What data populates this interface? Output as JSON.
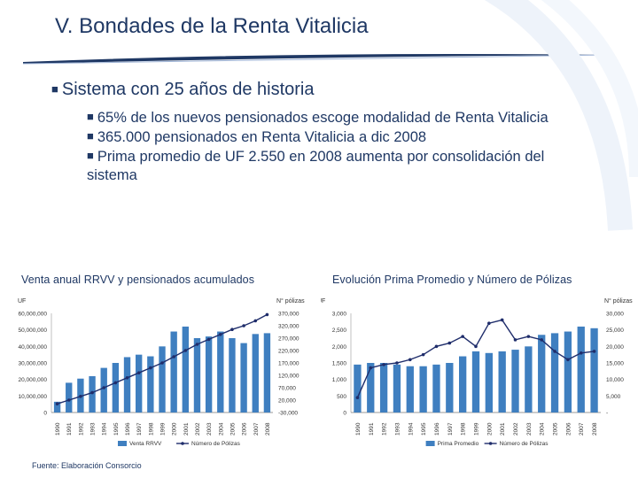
{
  "slide": {
    "title": "V. Bondades de la Renta Vitalicia",
    "bullet_main": "Sistema con 25 años de historia",
    "bullets": [
      "65% de los nuevos pensionados escoge modalidad de Renta Vitalicia",
      "365.000 pensionados en Renta Vitalicia a dic 2008",
      "Prima promedio de UF 2.550 en 2008 aumenta por consolidación del sistema"
    ],
    "source": "Fuente: Elaboración Consorcio"
  },
  "chart_data": [
    {
      "type": "bar",
      "title": "Venta anual RRVV y pensionados acumulados",
      "categories": [
        "1990",
        "1991",
        "1992",
        "1993",
        "1994",
        "1995",
        "1996",
        "1997",
        "1998",
        "1999",
        "2000",
        "2001",
        "2002",
        "2003",
        "2004",
        "2005",
        "2006",
        "2007",
        "2008"
      ],
      "left_axis": {
        "label": "UF",
        "ticks": [
          "60,000,000",
          "50,000,000",
          "40,000,000",
          "30,000,000",
          "20,000,000",
          "10,000,000",
          "0"
        ],
        "ylim": [
          0,
          60000000
        ]
      },
      "right_axis": {
        "label": "N° pólizas",
        "ticks": [
          "370,000",
          "320,000",
          "270,000",
          "220,000",
          "170,000",
          "120,000",
          "70,000",
          "20,000",
          "-30,000"
        ],
        "ylim": [
          -30000,
          370000
        ]
      },
      "series": [
        {
          "name": "Venta RRVV",
          "kind": "bar",
          "axis": "left",
          "color": "#3f7fc0",
          "values": [
            6500000,
            18000000,
            20500000,
            22000000,
            27000000,
            30000000,
            33500000,
            35000000,
            34000000,
            40000000,
            49000000,
            52000000,
            45000000,
            46000000,
            49000000,
            45000000,
            42000000,
            47500000,
            48000000
          ]
        },
        {
          "name": "Número de Pólizas",
          "kind": "line",
          "axis": "right",
          "color": "#1f2d6b",
          "values": [
            5000,
            20000,
            35000,
            50000,
            70000,
            90000,
            110000,
            130000,
            150000,
            170000,
            195000,
            220000,
            245000,
            265000,
            285000,
            305000,
            320000,
            340000,
            365000
          ]
        }
      ],
      "legend": "bottom"
    },
    {
      "type": "bar",
      "title": "Evolución Prima Promedio y Número de Pólizas",
      "categories": [
        "1990",
        "1991",
        "1992",
        "1993",
        "1994",
        "1995",
        "1996",
        "1997",
        "1998",
        "1999",
        "2000",
        "2001",
        "2002",
        "2003",
        "2004",
        "2005",
        "2006",
        "2007",
        "2008"
      ],
      "left_axis": {
        "label": "UF",
        "ticks": [
          "3,000",
          "2,500",
          "2,000",
          "1,500",
          "1,000",
          "500",
          "0"
        ],
        "ylim": [
          0,
          3000
        ]
      },
      "right_axis": {
        "label": "N° pólizas",
        "ticks": [
          "30,000",
          "25,000",
          "20,000",
          "15,000",
          "10,000",
          "5,000",
          "-"
        ],
        "ylim": [
          0,
          30000
        ]
      },
      "series": [
        {
          "name": "Prima Promedio",
          "kind": "bar",
          "axis": "left",
          "color": "#3f7fc0",
          "values": [
            1450,
            1500,
            1500,
            1450,
            1400,
            1400,
            1450,
            1500,
            1700,
            1850,
            1800,
            1850,
            1900,
            2000,
            2350,
            2400,
            2450,
            2600,
            2550
          ]
        },
        {
          "name": "Número de Pólizas",
          "kind": "line",
          "axis": "right",
          "color": "#1f2d6b",
          "values": [
            4500,
            13500,
            14500,
            15000,
            16000,
            17500,
            20000,
            21000,
            23000,
            20000,
            27000,
            28000,
            22000,
            23000,
            22000,
            18500,
            16000,
            18000,
            18500
          ]
        }
      ],
      "legend": "bottom"
    }
  ]
}
